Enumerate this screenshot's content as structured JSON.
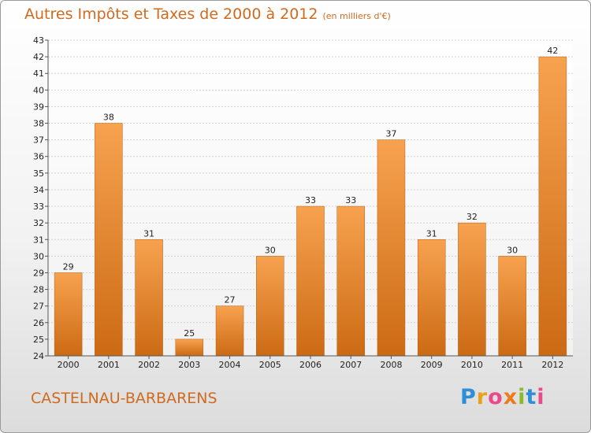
{
  "header": {
    "title": "Autres Impôts et Taxes de 2000 à 2012",
    "unit": "(en milliers d'€)"
  },
  "footer": {
    "place": "CASTELNAU-BARBARENS",
    "logo": "Proxiti"
  },
  "colors": {
    "accent": "#d06a1e",
    "bar_light": "#f7a24f",
    "bar_dark": "#cc6a14"
  },
  "chart_data": {
    "type": "bar",
    "title": "Autres Impôts et Taxes de 2000 à 2012",
    "subtitle": "(en milliers d'€)",
    "categories": [
      "2000",
      "2001",
      "2002",
      "2003",
      "2004",
      "2005",
      "2006",
      "2007",
      "2008",
      "2009",
      "2010",
      "2011",
      "2012"
    ],
    "values": [
      29,
      38,
      31,
      25,
      27,
      30,
      33,
      33,
      37,
      31,
      32,
      30,
      42
    ],
    "ylim": [
      24,
      43
    ],
    "yticks": [
      24,
      25,
      26,
      27,
      28,
      29,
      30,
      31,
      32,
      33,
      34,
      35,
      36,
      37,
      38,
      39,
      40,
      41,
      42,
      43
    ],
    "grid": true,
    "legend": "none"
  }
}
